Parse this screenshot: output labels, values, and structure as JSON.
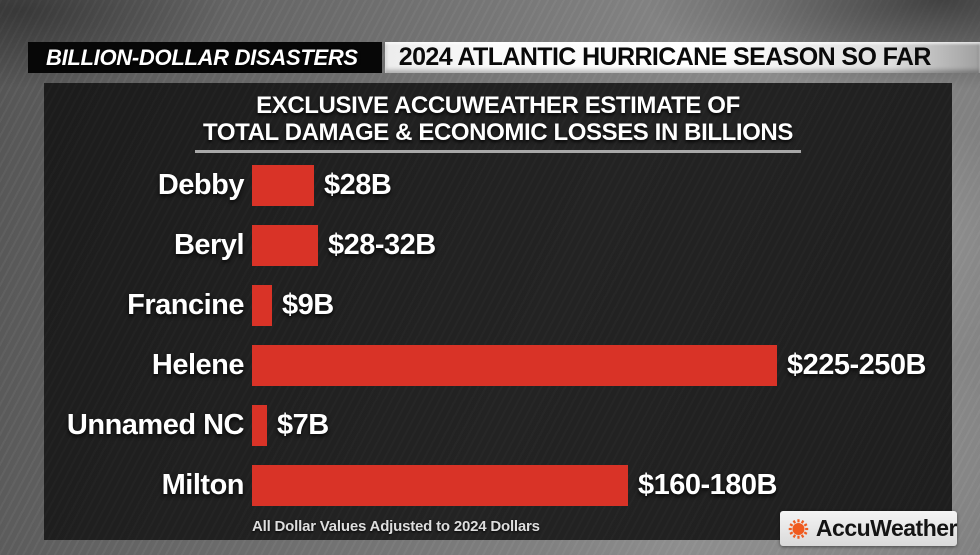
{
  "header": {
    "kicker": "BILLION-DOLLAR DISASTERS",
    "title": "2024 ATLANTIC HURRICANE SEASON SO FAR"
  },
  "panel": {
    "title_line1": "EXCLUSIVE ACCUWEATHER ESTIMATE OF",
    "title_line2": "TOTAL DAMAGE & ECONOMIC LOSSES IN BILLIONS",
    "footnote": "All Dollar Values Adjusted to 2024 Dollars"
  },
  "chart_data": {
    "type": "bar",
    "orientation": "horizontal",
    "title": "EXCLUSIVE ACCUWEATHER ESTIMATE OF TOTAL DAMAGE & ECONOMIC LOSSES IN BILLIONS",
    "unit": "billions of US dollars, adjusted to 2024 dollars",
    "xlim": [
      0,
      250
    ],
    "grid": false,
    "legend": false,
    "bar_color": "#d93327",
    "categories": [
      "Debby",
      "Beryl",
      "Francine",
      "Helene",
      "Unnamed NC",
      "Milton"
    ],
    "values_min": [
      28,
      28,
      9,
      225,
      7,
      160
    ],
    "values_max": [
      28,
      32,
      9,
      250,
      7,
      180
    ],
    "value_labels": [
      "$28B",
      "$28-32B",
      "$9B",
      "$225-250B",
      "$7B",
      "$160-180B"
    ]
  },
  "branding": {
    "logo_text": "AccuWeather",
    "logo_icon": "sun-icon",
    "sun_color": "#f05b1f"
  }
}
